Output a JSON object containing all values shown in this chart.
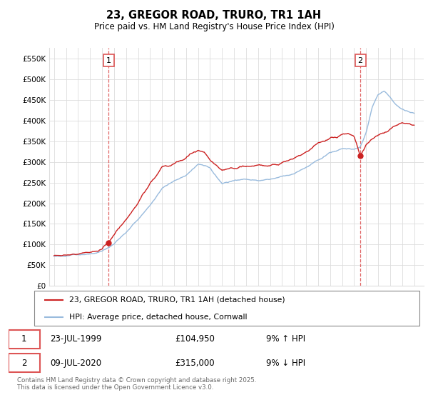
{
  "title": "23, GREGOR ROAD, TRURO, TR1 1AH",
  "subtitle": "Price paid vs. HM Land Registry's House Price Index (HPI)",
  "ylim": [
    0,
    575000
  ],
  "yticks": [
    0,
    50000,
    100000,
    150000,
    200000,
    250000,
    300000,
    350000,
    400000,
    450000,
    500000,
    550000
  ],
  "ytick_labels": [
    "£0",
    "£50K",
    "£100K",
    "£150K",
    "£200K",
    "£250K",
    "£300K",
    "£350K",
    "£400K",
    "£450K",
    "£500K",
    "£550K"
  ],
  "xlim_start": 1994.6,
  "xlim_end": 2025.8,
  "legend_line1": "23, GREGOR ROAD, TRURO, TR1 1AH (detached house)",
  "legend_line2": "HPI: Average price, detached house, Cornwall",
  "annotation1_date": "23-JUL-1999",
  "annotation1_price": "£104,950",
  "annotation1_hpi": "9% ↑ HPI",
  "annotation2_date": "09-JUL-2020",
  "annotation2_price": "£315,000",
  "annotation2_hpi": "9% ↓ HPI",
  "sale1_year": 1999.55,
  "sale1_price": 104950,
  "sale2_year": 2020.52,
  "sale2_price": 315000,
  "footer": "Contains HM Land Registry data © Crown copyright and database right 2025.\nThis data is licensed under the Open Government Licence v3.0.",
  "red_color": "#cc2222",
  "blue_color": "#99bbdd",
  "dashed_color": "#dd5555",
  "grid_color": "#dddddd",
  "background_color": "#ffffff"
}
